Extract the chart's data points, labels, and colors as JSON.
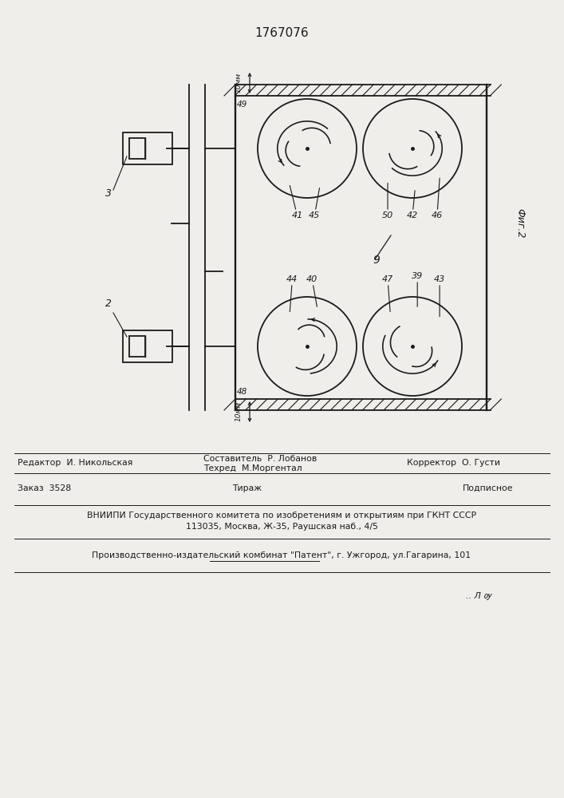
{
  "patent_number": "1767076",
  "fig_label": "Фиг.2",
  "bg_color": "#f0eeea",
  "line_color": "#1a1a1a",
  "editor_line": "Редактор  И. Никольская",
  "composer_line": "Составитель  Р. Лобанов",
  "techred_line": "Техред  М.Моргентал",
  "corrector_line": "Корректор  О. Густи",
  "order_line": "Заказ  3528",
  "tirazh_line": "Тираж",
  "podpisnoe_line": "Подписное",
  "vnipi_line": "ВНИИПИ Государственного комитета по изобретениям и открытиям при ГКНТ СССР",
  "address_line": "113035, Москва, Ж-35, Раушская наб., 4/5",
  "patent_line": "Производственно-издательский комбинат \"Патент\", г. Ужгород, ул.Гагарина, 101",
  "page_mark": ".. Л ѹ"
}
